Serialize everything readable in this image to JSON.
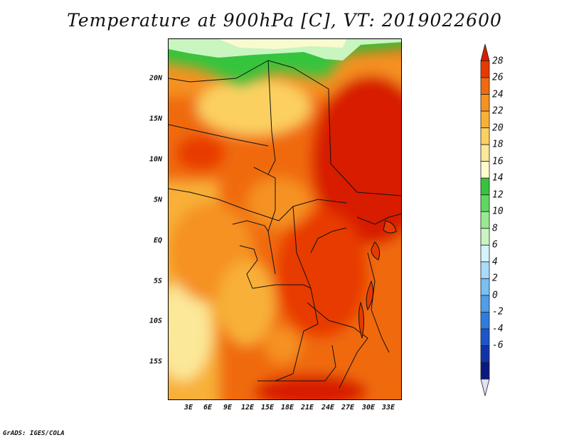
{
  "title": "Temperature at 900hPa [C], VT: 2019022600",
  "credit": "GrADS: IGES/COLA",
  "axes": {
    "y_ticks": [
      "20N",
      "15N",
      "10N",
      "5N",
      "EQ",
      "5S",
      "10S",
      "15S"
    ],
    "x_ticks": [
      "3E",
      "6E",
      "9E",
      "12E",
      "15E",
      "18E",
      "21E",
      "24E",
      "27E",
      "30E",
      "33E"
    ]
  },
  "colorbar": {
    "labels": [
      "28",
      "26",
      "24",
      "22",
      "20",
      "18",
      "16",
      "14",
      "12",
      "10",
      "8",
      "6",
      "4",
      "2",
      "0",
      "-2",
      "-4",
      "-6"
    ],
    "colors": [
      "#d81f00",
      "#e83a00",
      "#f06a10",
      "#f59220",
      "#f8b038",
      "#fbd060",
      "#fbe898",
      "#fffbd0",
      "#36c43c",
      "#5fd860",
      "#98ea90",
      "#c8f5c0",
      "#d6f2fa",
      "#a9dcf8",
      "#78bff2",
      "#4f9ee9",
      "#2f7cdc",
      "#1e55c8",
      "#1034a8",
      "#081a80"
    ],
    "under_color": "#e2e0f5"
  }
}
